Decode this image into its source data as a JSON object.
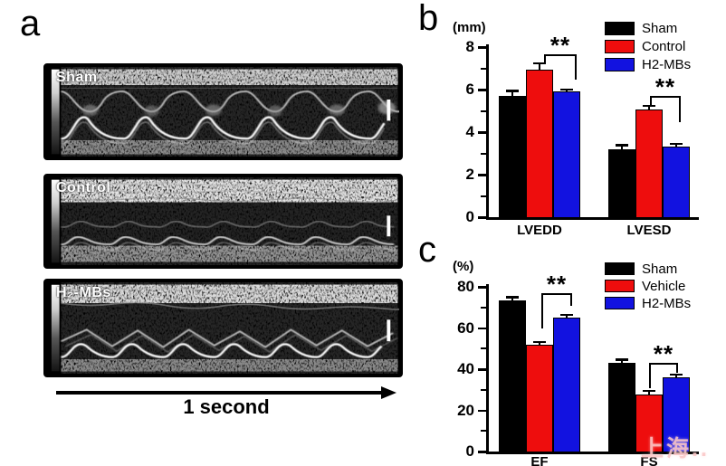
{
  "panels": {
    "a": "a",
    "b": "b",
    "c": "c"
  },
  "panel_a": {
    "images": [
      {
        "label": "Sham"
      },
      {
        "label": "Control"
      },
      {
        "label": "H₂-MBs"
      }
    ],
    "time_label": "1 second"
  },
  "watermark": "上海..",
  "colors": {
    "sham": "#000000",
    "red": "#ee0d0d",
    "blue": "#1212e0"
  },
  "chart_data": [
    {
      "id": "b",
      "type": "bar",
      "ylabel": "(mm)",
      "categories": [
        "LVEDD",
        "LVESD"
      ],
      "series": [
        {
          "name": "Sham",
          "color": "#000000",
          "values": [
            5.7,
            3.2
          ],
          "errors": [
            0.25,
            0.2
          ]
        },
        {
          "name": "Control",
          "color": "#ee0d0d",
          "values": [
            6.95,
            5.05
          ],
          "errors": [
            0.3,
            0.2
          ]
        },
        {
          "name": "H2-MBs",
          "color": "#1212e0",
          "values": [
            5.9,
            3.3
          ],
          "errors": [
            0.12,
            0.15
          ]
        }
      ],
      "ylim": [
        0,
        8
      ],
      "ytick_step": 2,
      "yminor_step": 1,
      "grid": false,
      "legend_position": "top-right",
      "annotations": [
        {
          "category": "LVEDD",
          "between": [
            "Control",
            "H2-MBs"
          ],
          "label": "**"
        },
        {
          "category": "LVESD",
          "between": [
            "Control",
            "H2-MBs"
          ],
          "label": "**"
        }
      ]
    },
    {
      "id": "c",
      "type": "bar",
      "ylabel": "(%)",
      "categories": [
        "EF",
        "FS"
      ],
      "series": [
        {
          "name": "Sham",
          "color": "#000000",
          "values": [
            73.5,
            43
          ],
          "errors": [
            1.5,
            1.8
          ]
        },
        {
          "name": "Vehicle",
          "color": "#ee0d0d",
          "values": [
            52,
            27.5
          ],
          "errors": [
            1.3,
            2.0
          ]
        },
        {
          "name": "H2-MBs",
          "color": "#1212e0",
          "values": [
            65,
            36
          ],
          "errors": [
            1.5,
            1.5
          ]
        }
      ],
      "ylim": [
        0,
        80
      ],
      "ytick_step": 20,
      "yminor_step": 10,
      "grid": false,
      "legend_position": "top-right",
      "annotations": [
        {
          "category": "EF",
          "between": [
            "Vehicle",
            "H2-MBs"
          ],
          "label": "**"
        },
        {
          "category": "FS",
          "between": [
            "Vehicle",
            "H2-MBs"
          ],
          "label": "**"
        }
      ]
    }
  ]
}
